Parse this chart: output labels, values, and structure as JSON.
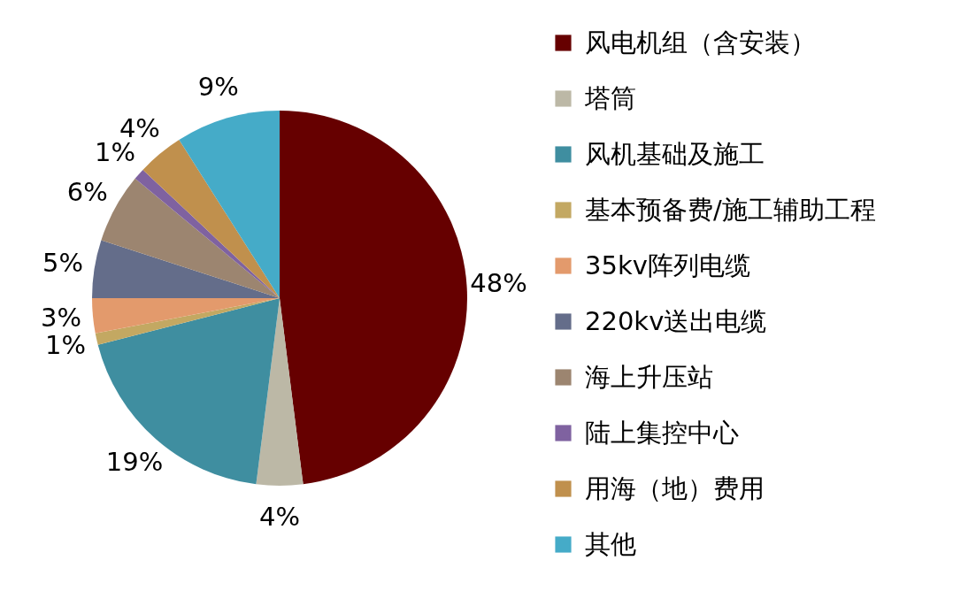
{
  "chart_data": {
    "type": "pie",
    "categories": [
      "风电机组（含安装）",
      "塔筒",
      "风机基础及施工",
      "基本预备费/施工辅助工程",
      "35kv阵列电缆",
      "220kv送出电缆",
      "海上升压站",
      "陆上集控中心",
      "用海（地）费用",
      "其他"
    ],
    "values": [
      48,
      4,
      19,
      1,
      3,
      5,
      6,
      1,
      4,
      9
    ],
    "colors": [
      "#660000",
      "#bcb8a6",
      "#3f8ea0",
      "#c3a862",
      "#e39a6c",
      "#646d8a",
      "#9c8570",
      "#7f62a0",
      "#c0904d",
      "#45abc8"
    ],
    "value_labels": [
      "48%",
      "4%",
      "19%",
      "1%",
      "3%",
      "5%",
      "6%",
      "1%",
      "4%",
      "9%"
    ],
    "legend": "right"
  }
}
